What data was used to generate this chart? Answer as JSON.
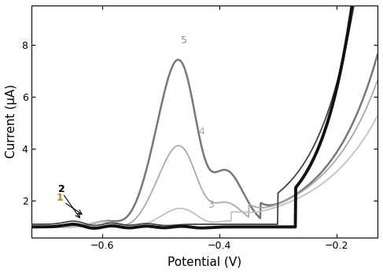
{
  "xlabel": "Potential (V)",
  "ylabel": "Current (μA)",
  "xlim": [
    -0.72,
    -0.13
  ],
  "ylim": [
    0.6,
    9.5
  ],
  "xticks": [
    -0.6,
    -0.4,
    -0.2
  ],
  "yticks": [
    2,
    4,
    6,
    8
  ],
  "label_colors": {
    "1": "#b8860b",
    "2": "#000000",
    "3": "#9999bb",
    "4": "#aaaaaa",
    "5": "#888888"
  },
  "line_colors": {
    "1": "#111111",
    "2": "#444444",
    "3": "#c0c0d0",
    "4": "#aaaaaa",
    "5": "#777777"
  },
  "line_widths": {
    "1": 2.8,
    "2": 1.3,
    "3": 1.3,
    "4": 1.3,
    "5": 1.8
  },
  "background_color": "#ffffff"
}
